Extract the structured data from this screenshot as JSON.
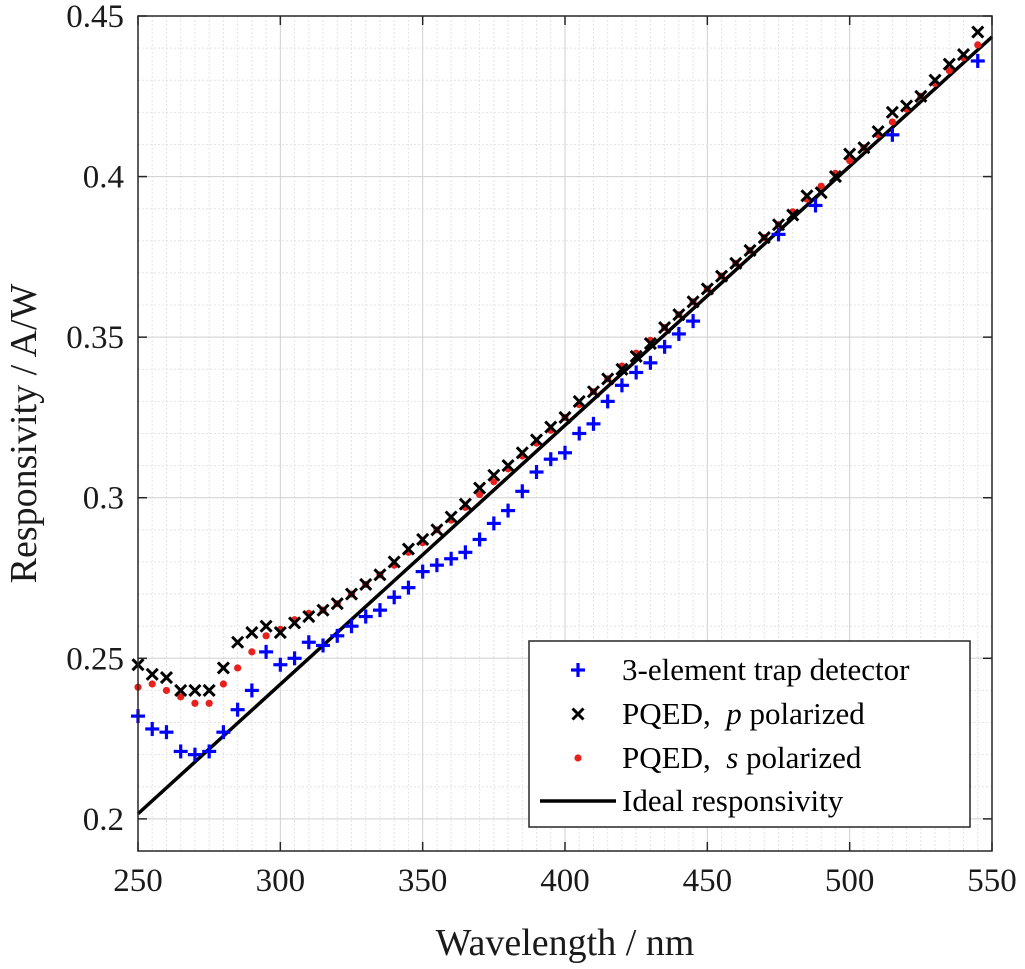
{
  "chart_data": {
    "type": "scatter",
    "xlabel": "Wavelength / nm",
    "ylabel": "Responsivity / A/W",
    "xlim": [
      250,
      550
    ],
    "ylim": [
      0.19,
      0.45
    ],
    "x_ticks": [
      250,
      300,
      350,
      400,
      450,
      500,
      550
    ],
    "x_tick_labels": [
      "250",
      "300",
      "350",
      "400",
      "450",
      "500",
      "550"
    ],
    "y_ticks": [
      0.2,
      0.25,
      0.3,
      0.35,
      0.4,
      0.45
    ],
    "y_tick_labels": [
      "0.2",
      "0.25",
      "0.3",
      "0.35",
      "0.4",
      "0.45"
    ],
    "grid": true,
    "legend_position": "bottom-right",
    "series": [
      {
        "name": "3-element trap detector",
        "marker": "plus",
        "color": "#0000ff",
        "x": [
          250,
          255,
          260,
          265,
          270,
          275,
          280,
          285,
          290,
          295,
          300,
          305,
          310,
          315,
          320,
          325,
          330,
          335,
          340,
          345,
          350,
          355,
          360,
          365,
          370,
          375,
          380,
          385,
          390,
          395,
          400,
          405,
          410,
          415,
          420,
          425,
          430,
          435,
          440,
          445,
          475,
          488,
          515,
          545
        ],
        "y": [
          0.232,
          0.228,
          0.227,
          0.221,
          0.22,
          0.221,
          0.227,
          0.234,
          0.24,
          0.252,
          0.248,
          0.25,
          0.255,
          0.254,
          0.257,
          0.26,
          0.263,
          0.265,
          0.269,
          0.272,
          0.277,
          0.279,
          0.281,
          0.283,
          0.287,
          0.292,
          0.296,
          0.302,
          0.308,
          0.312,
          0.314,
          0.32,
          0.323,
          0.33,
          0.335,
          0.339,
          0.342,
          0.347,
          0.351,
          0.355,
          0.382,
          0.391,
          0.413,
          0.436
        ]
      },
      {
        "name": "PQED, p polarized",
        "marker": "cross",
        "color": "#000000",
        "x": [
          250,
          255,
          260,
          265,
          270,
          275,
          280,
          285,
          290,
          295,
          300,
          305,
          310,
          315,
          320,
          325,
          330,
          335,
          340,
          345,
          350,
          355,
          360,
          365,
          370,
          375,
          380,
          385,
          390,
          395,
          400,
          405,
          410,
          415,
          420,
          425,
          430,
          435,
          440,
          445,
          450,
          455,
          460,
          465,
          470,
          475,
          480,
          485,
          490,
          495,
          500,
          505,
          510,
          515,
          520,
          525,
          530,
          535,
          540,
          545
        ],
        "y": [
          0.248,
          0.245,
          0.244,
          0.24,
          0.24,
          0.24,
          0.247,
          0.255,
          0.258,
          0.26,
          0.258,
          0.261,
          0.263,
          0.265,
          0.267,
          0.27,
          0.273,
          0.276,
          0.28,
          0.284,
          0.287,
          0.29,
          0.294,
          0.298,
          0.303,
          0.307,
          0.31,
          0.314,
          0.318,
          0.322,
          0.325,
          0.33,
          0.333,
          0.337,
          0.34,
          0.344,
          0.348,
          0.353,
          0.357,
          0.361,
          0.365,
          0.369,
          0.373,
          0.377,
          0.381,
          0.385,
          0.388,
          0.394,
          0.395,
          0.4,
          0.407,
          0.409,
          0.414,
          0.42,
          0.422,
          0.425,
          0.43,
          0.435,
          0.438,
          0.445
        ]
      },
      {
        "name": "PQED, s polarized",
        "marker": "dot",
        "color": "#e8211c",
        "x": [
          250,
          255,
          260,
          265,
          270,
          275,
          280,
          285,
          290,
          295,
          300,
          305,
          310,
          315,
          320,
          325,
          330,
          335,
          340,
          345,
          350,
          355,
          360,
          365,
          370,
          375,
          380,
          385,
          390,
          395,
          400,
          405,
          410,
          415,
          420,
          425,
          430,
          435,
          440,
          445,
          450,
          455,
          460,
          465,
          470,
          475,
          480,
          485,
          490,
          495,
          500,
          505,
          510,
          515,
          520,
          525,
          530,
          535,
          540,
          545
        ],
        "y": [
          0.241,
          0.242,
          0.24,
          0.238,
          0.236,
          0.236,
          0.242,
          0.247,
          0.252,
          0.257,
          0.259,
          0.262,
          0.264,
          0.265,
          0.267,
          0.27,
          0.273,
          0.276,
          0.279,
          0.283,
          0.286,
          0.29,
          0.293,
          0.297,
          0.301,
          0.305,
          0.309,
          0.313,
          0.317,
          0.321,
          0.325,
          0.329,
          0.333,
          0.337,
          0.341,
          0.345,
          0.349,
          0.353,
          0.357,
          0.361,
          0.365,
          0.369,
          0.373,
          0.377,
          0.381,
          0.385,
          0.389,
          0.393,
          0.397,
          0.401,
          0.405,
          0.409,
          0.413,
          0.417,
          0.421,
          0.425,
          0.429,
          0.433,
          0.437,
          0.441
        ]
      },
      {
        "name": "Ideal responsivity",
        "marker": "line",
        "color": "#000000",
        "x": [
          250,
          550
        ],
        "y": [
          0.2016,
          0.4435
        ]
      }
    ]
  }
}
